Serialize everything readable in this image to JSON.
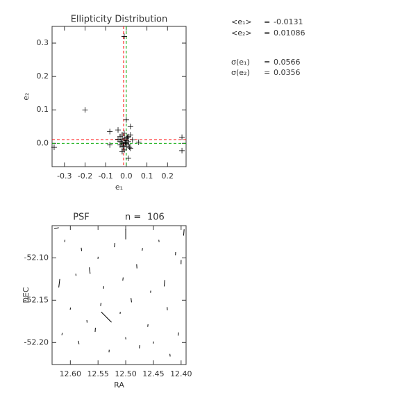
{
  "chart_data": [
    {
      "type": "scatter",
      "title": "Ellipticity Distribution",
      "x_label": "e₁",
      "y_label": "e₂",
      "x": [
        -0.2,
        -0.01,
        -0.35,
        0.27,
        0.27,
        -0.08,
        -0.08,
        0.0,
        0.01,
        0.02,
        -0.04,
        0.06,
        -0.03,
        -0.02,
        -0.01,
        0.0,
        0.01,
        -0.02,
        -0.01,
        0.0,
        -0.03,
        0.02,
        -0.01,
        -0.02,
        0.01,
        0.0,
        -0.01,
        -0.03,
        0.03,
        -0.02,
        -0.01,
        0.0,
        0.01,
        -0.04,
        0.02,
        -0.005,
        -0.015,
        0.005,
        -0.025,
        0.015
      ],
      "y": [
        0.1,
        0.32,
        -0.012,
        0.018,
        -0.022,
        0.035,
        -0.005,
        0.07,
        -0.045,
        0.05,
        0.04,
        0.003,
        0.02,
        0.01,
        0.0,
        -0.01,
        0.005,
        0.025,
        -0.02,
        0.015,
        -0.005,
        -0.015,
        0.03,
        -0.01,
        0.02,
        0.0,
        0.01,
        0.005,
        0.01,
        -0.025,
        0.015,
        0.008,
        -0.005,
        0.012,
        0.025,
        0.002,
        -0.008,
        0.018,
        0.004,
        -0.012
      ],
      "color": "#000000",
      "xlim": [
        -0.36,
        0.29
      ],
      "ylim": [
        -0.07,
        0.35
      ],
      "xticks": [
        -0.3,
        -0.2,
        -0.1,
        {
          "value": 0,
          "label": "0.0"
        },
        0.1,
        0.2
      ],
      "yticks": [
        {
          "value": 0,
          "label": "0.0"
        },
        0.1,
        0.2,
        0.3
      ],
      "stats": [
        {
          "label": "<e₁>",
          "value": -0.0131
        },
        {
          "label": "<e₂>",
          "value": 0.01086
        },
        {
          "label": "σ(e₁)",
          "value": 0.0566
        },
        {
          "label": "σ(e₂)",
          "value": 0.0356
        }
      ],
      "equals": "=",
      "mean_line_color": "#ff0000",
      "zero_line_color": "#00aa00"
    },
    {
      "type": "whisker",
      "title": "PSF",
      "count_label": "n =",
      "count": 106,
      "x_label": "RA",
      "y_label": "DEC",
      "ra": [
        12.625,
        12.61,
        12.58,
        12.55,
        12.52,
        12.5,
        12.47,
        12.44,
        12.41,
        12.395,
        12.62,
        12.59,
        12.565,
        12.54,
        12.505,
        12.48,
        12.455,
        12.43,
        12.4,
        12.6,
        12.57,
        12.545,
        12.535,
        12.51,
        12.49,
        12.46,
        12.425,
        12.615,
        12.585,
        12.555,
        12.53,
        12.5,
        12.475,
        12.45,
        12.42,
        12.405
      ],
      "dec": [
        -52.065,
        -52.08,
        -52.09,
        -52.1,
        -52.085,
        -52.072,
        -52.09,
        -52.08,
        -52.095,
        -52.07,
        -52.13,
        -52.12,
        -52.115,
        -52.135,
        -52.125,
        -52.11,
        -52.14,
        -52.13,
        -52.105,
        -52.16,
        -52.175,
        -52.155,
        -52.17,
        -52.165,
        -52.15,
        -52.18,
        -52.16,
        -52.19,
        -52.2,
        -52.185,
        -52.21,
        -52.195,
        -52.205,
        -52.2,
        -52.215,
        -52.19
      ],
      "e1": [
        0.02,
        -0.01,
        -0.015,
        -0.01,
        -0.02,
        -0.05,
        -0.012,
        -0.01,
        -0.015,
        -0.03,
        -0.04,
        -0.01,
        -0.03,
        -0.012,
        -0.015,
        -0.02,
        -0.01,
        -0.03,
        -0.02,
        -0.01,
        -0.012,
        -0.015,
        0,
        -0.01,
        -0.02,
        -0.012,
        -0.015,
        -0.01,
        -0.015,
        -0.02,
        -0.012,
        -0.01,
        -0.015,
        -0.01,
        -0.012,
        -0.015
      ],
      "e2": [
        0.01,
        0.003,
        -0.004,
        0.002,
        0.005,
        0,
        0.004,
        -0.003,
        0.002,
        0.005,
        0.01,
        -0.002,
        -0.008,
        0.003,
        0.004,
        -0.003,
        0.002,
        0.006,
        0.001,
        0.003,
        -0.002,
        0.004,
        -0.07,
        0.002,
        -0.005,
        0.003,
        -0.002,
        0.004,
        -0.008,
        0.003,
        0.002,
        -0.003,
        0.004,
        0.002,
        -0.003,
        0.005
      ],
      "color": "#000000",
      "xlim": [
        12.633,
        12.391
      ],
      "ylim": [
        -52.226,
        -52.062
      ],
      "xticks": [
        {
          "value": 12.6,
          "label": "12.60"
        },
        12.55,
        {
          "value": 12.5,
          "label": "12.50"
        },
        12.45,
        {
          "value": 12.4,
          "label": "12.40"
        }
      ],
      "yticks": [
        {
          "value": -52.1,
          "label": "-52.10"
        },
        -52.15,
        {
          "value": -52.2,
          "label": "-52.20"
        }
      ]
    }
  ]
}
